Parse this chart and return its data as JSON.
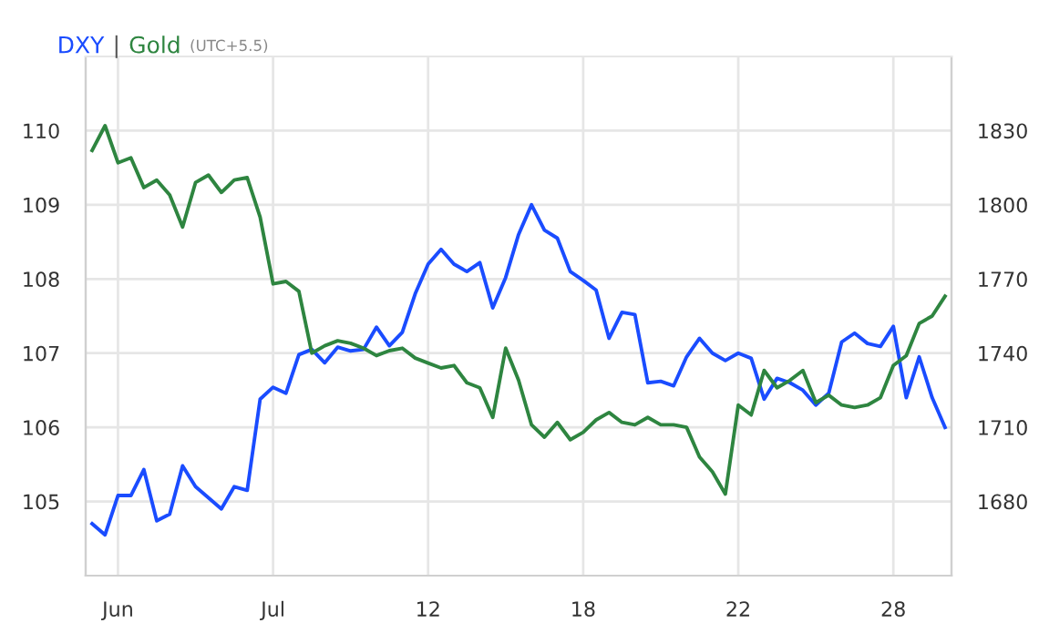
{
  "chart_data": {
    "type": "line",
    "annotations": [
      "|",
      "(UTC+5.5)"
    ],
    "categories": [
      null,
      null,
      "Jun",
      null,
      null,
      null,
      null,
      null,
      null,
      null,
      null,
      null,
      null,
      null,
      "Jul",
      null,
      null,
      null,
      null,
      null,
      null,
      null,
      null,
      null,
      null,
      null,
      "12",
      null,
      null,
      null,
      null,
      null,
      null,
      null,
      null,
      null,
      null,
      null,
      "18",
      null,
      null,
      null,
      null,
      null,
      null,
      null,
      null,
      null,
      null,
      null,
      "22",
      null,
      null,
      null,
      null,
      null,
      null,
      null,
      null,
      null,
      null,
      null,
      "28",
      null,
      null,
      null,
      null
    ],
    "ylim": [
      104,
      111
    ],
    "yticks": [
      105,
      106,
      107,
      108,
      109,
      110
    ],
    "y2lim": [
      1650,
      1860
    ],
    "y2ticks": [
      1680,
      1710,
      1740,
      1770,
      1800,
      1830
    ],
    "grid": true,
    "legend": "top left",
    "line_style": "solid",
    "series": [
      {
        "name": "DXY",
        "color": "#1a4cff",
        "values": [
          104.7,
          104.55,
          105.08,
          105.08,
          105.43,
          104.74,
          104.83,
          105.48,
          105.2,
          105.05,
          104.9,
          105.2,
          105.15,
          106.38,
          106.54,
          106.46,
          106.98,
          107.05,
          106.87,
          107.08,
          107.03,
          107.05,
          107.35,
          107.1,
          107.28,
          107.8,
          108.2,
          108.4,
          108.2,
          108.1,
          108.22,
          107.61,
          108.02,
          108.6,
          109.0,
          108.66,
          108.55,
          108.1,
          107.98,
          107.85,
          107.2,
          107.55,
          107.52,
          106.6,
          106.62,
          106.56,
          106.95,
          107.2,
          107.0,
          106.9,
          107.0,
          106.93,
          106.38,
          106.66,
          106.6,
          106.5,
          106.3,
          106.46,
          107.15,
          107.27,
          107.13,
          107.09,
          107.36,
          106.4,
          106.95,
          106.4,
          106.0
        ]
      },
      {
        "name": "Gold",
        "color": "#2e8540",
        "axis": "y2",
        "values": [
          1822,
          1832,
          1817,
          1819,
          1807,
          1810,
          1804,
          1791,
          1809,
          1812,
          1805,
          1810,
          1811,
          1795,
          1768,
          1769,
          1765,
          1740,
          1743,
          1745,
          1744,
          1742,
          1739,
          1741,
          1742,
          1738,
          1736,
          1734,
          1735,
          1728,
          1726,
          1714,
          1742,
          1729,
          1711,
          1706,
          1712,
          1705,
          1708,
          1713,
          1716,
          1712,
          1711,
          1714,
          1711,
          1711,
          1710,
          1698,
          1692,
          1683,
          1719,
          1715,
          1733,
          1726,
          1729,
          1733,
          1720,
          1723,
          1719,
          1718,
          1719,
          1722,
          1735,
          1739,
          1752,
          1755,
          1763
        ]
      }
    ]
  }
}
